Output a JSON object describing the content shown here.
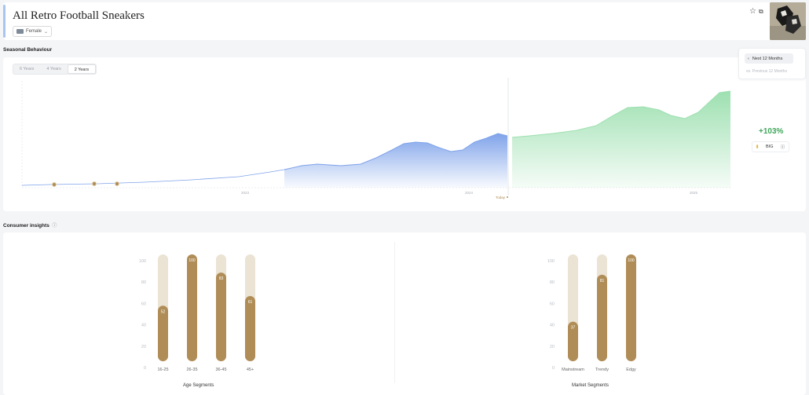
{
  "header": {
    "title": "All Retro Football Sneakers",
    "gender_filter": "Female"
  },
  "seasonal": {
    "section_title": "Seasonal Behaviour",
    "tabs": [
      {
        "label": "6 Years",
        "active": false
      },
      {
        "label": "4 Years",
        "active": false
      },
      {
        "label": "2 Years",
        "active": true
      }
    ],
    "next_button": "Next 12 Months",
    "vs_text": "vs. Previous 12 Months",
    "growth": "+103%",
    "metric_label": "BIG",
    "today_label": "Today",
    "x_labels": [
      "2023",
      "2024",
      "2025"
    ],
    "colors": {
      "history": "#7fa3ea",
      "forecast": "#9de0b0",
      "marker": "#b08d57"
    }
  },
  "insights": {
    "section_title": "Consumer insights",
    "age": {
      "title": "Age Segments",
      "ticks": [
        "100",
        "80",
        "60",
        "40",
        "20",
        "0"
      ],
      "categories": [
        "16-25",
        "26-35",
        "36-45",
        "45+"
      ],
      "values": [
        52,
        100,
        83,
        61
      ]
    },
    "market": {
      "title": "Market Segments",
      "ticks": [
        "100",
        "80",
        "60",
        "40",
        "20",
        "0"
      ],
      "categories": [
        "Mainstream",
        "Trendy",
        "Edgy"
      ],
      "values": [
        37,
        81,
        100
      ]
    },
    "colors": {
      "fill": "#b08d57",
      "track": "#ebe3d4"
    }
  }
}
